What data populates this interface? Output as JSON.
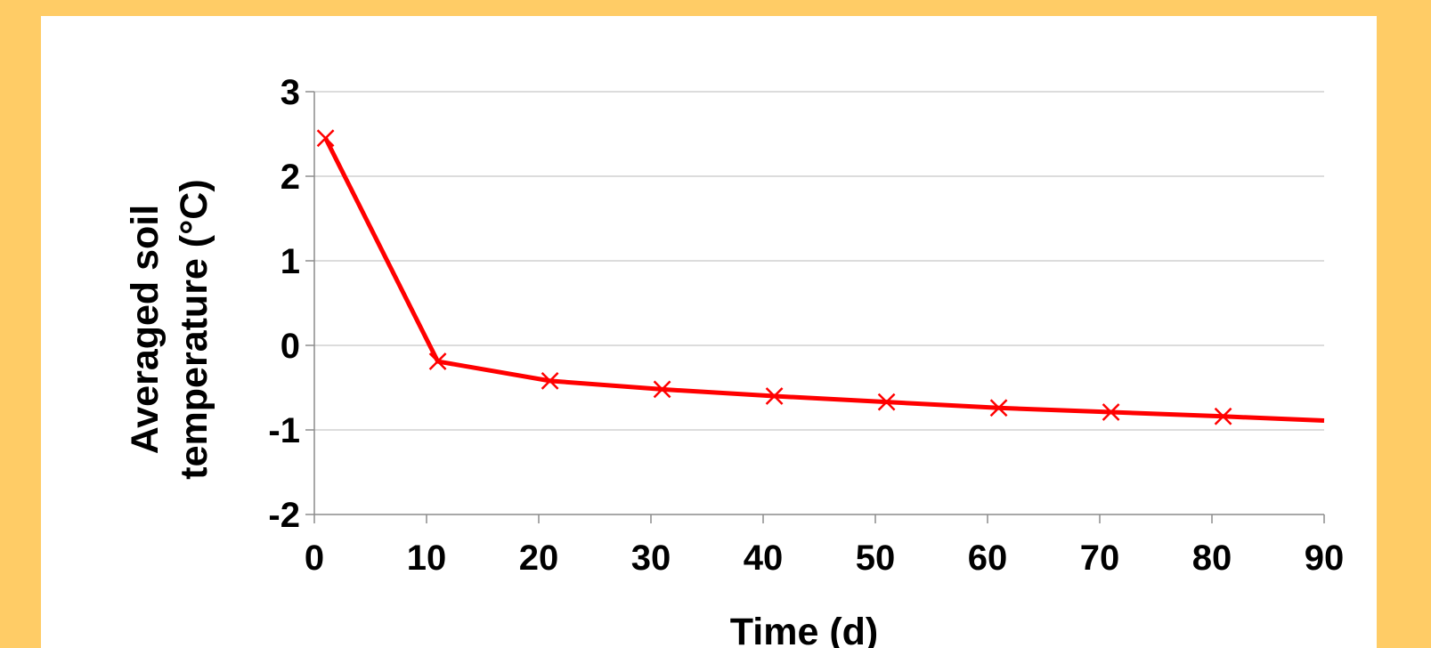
{
  "colors": {
    "background": "#ffcc66",
    "panel": "#ffffff",
    "series": "#ff0000",
    "grid": "#c8c8c8",
    "axis": "#8c8c8c"
  },
  "chart_data": {
    "type": "line",
    "title": "",
    "xlabel": "Time (d)",
    "ylabel_lines": [
      "Averaged soil",
      "temperature (°C)"
    ],
    "xlim": [
      0,
      90
    ],
    "ylim": [
      -2,
      3
    ],
    "x_ticks": [
      0,
      10,
      20,
      30,
      40,
      50,
      60,
      70,
      80,
      90
    ],
    "y_ticks": [
      3,
      2,
      1,
      0,
      -1,
      -2
    ],
    "grid": "horizontal",
    "marker": "x",
    "legend": "none",
    "series": [
      {
        "x": [
          1,
          11,
          21,
          31,
          41,
          51,
          61,
          71,
          81,
          90
        ],
        "y": [
          2.45,
          -0.19,
          -0.42,
          -0.52,
          -0.6,
          -0.67,
          -0.74,
          -0.79,
          -0.84,
          -0.89
        ],
        "markers": [
          true,
          true,
          true,
          true,
          true,
          true,
          true,
          true,
          true,
          false
        ]
      }
    ]
  }
}
